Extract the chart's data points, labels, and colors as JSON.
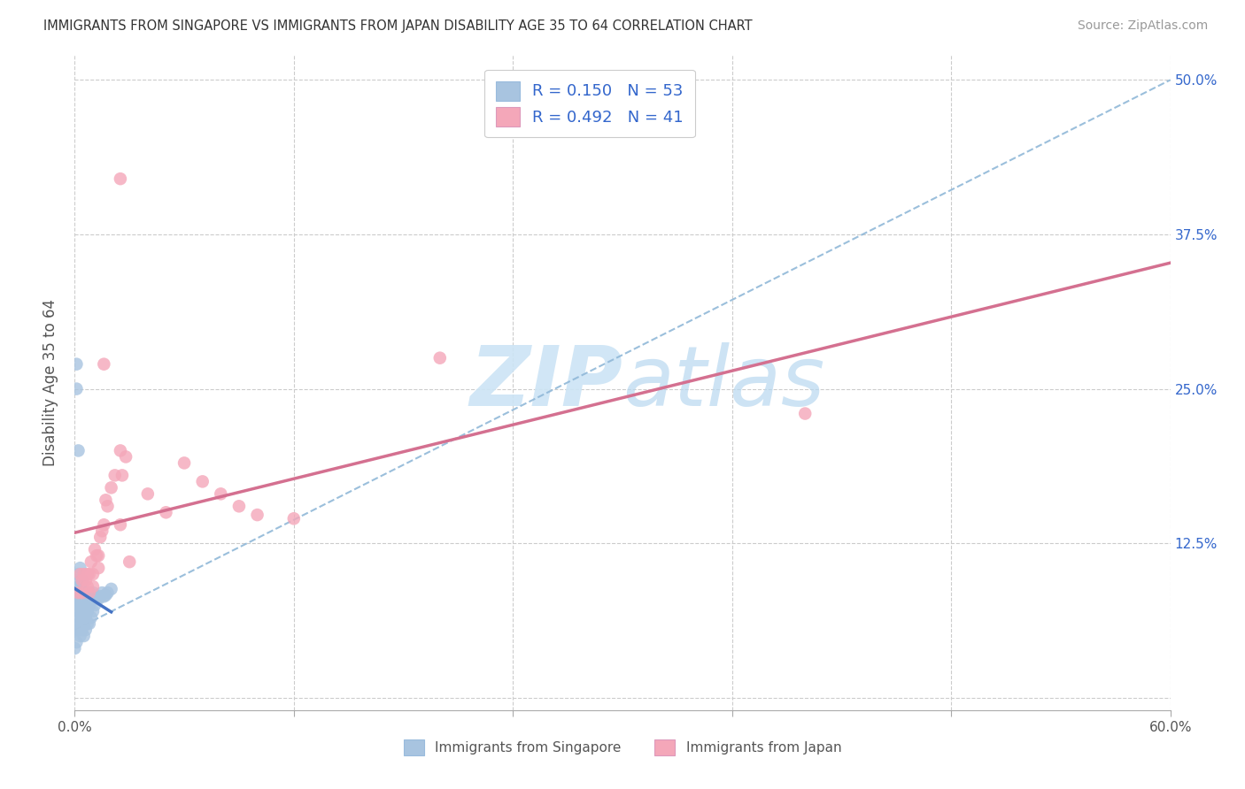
{
  "title": "IMMIGRANTS FROM SINGAPORE VS IMMIGRANTS FROM JAPAN DISABILITY AGE 35 TO 64 CORRELATION CHART",
  "source": "Source: ZipAtlas.com",
  "ylabel_label": "Disability Age 35 to 64",
  "x_min": 0.0,
  "x_max": 0.6,
  "y_min": -0.01,
  "y_max": 0.52,
  "r_singapore": 0.15,
  "n_singapore": 53,
  "r_japan": 0.492,
  "n_japan": 41,
  "color_singapore": "#a8c4e0",
  "color_japan": "#f4a7b9",
  "line_color_singapore": "#4472c4",
  "line_color_japan": "#d47090",
  "dash_line_color": "#90b8d8",
  "watermark_color": "#cce4f5",
  "legend_text_color": "#3366cc",
  "sg_x": [
    0.0,
    0.0,
    0.001,
    0.001,
    0.001,
    0.001,
    0.001,
    0.002,
    0.002,
    0.002,
    0.002,
    0.002,
    0.002,
    0.003,
    0.003,
    0.003,
    0.003,
    0.003,
    0.003,
    0.003,
    0.004,
    0.004,
    0.004,
    0.004,
    0.004,
    0.005,
    0.005,
    0.005,
    0.005,
    0.006,
    0.006,
    0.006,
    0.007,
    0.007,
    0.007,
    0.008,
    0.008,
    0.009,
    0.009,
    0.01,
    0.01,
    0.011,
    0.012,
    0.013,
    0.014,
    0.015,
    0.016,
    0.017,
    0.018,
    0.02,
    0.001,
    0.001,
    0.002
  ],
  "sg_y": [
    0.06,
    0.04,
    0.095,
    0.07,
    0.055,
    0.08,
    0.045,
    0.1,
    0.08,
    0.065,
    0.09,
    0.075,
    0.055,
    0.105,
    0.085,
    0.07,
    0.06,
    0.09,
    0.075,
    0.05,
    0.095,
    0.08,
    0.065,
    0.055,
    0.075,
    0.085,
    0.07,
    0.06,
    0.05,
    0.08,
    0.065,
    0.055,
    0.085,
    0.07,
    0.06,
    0.075,
    0.06,
    0.08,
    0.065,
    0.085,
    0.07,
    0.075,
    0.08,
    0.08,
    0.082,
    0.085,
    0.082,
    0.083,
    0.085,
    0.088,
    0.27,
    0.25,
    0.2
  ],
  "jp_x": [
    0.002,
    0.003,
    0.004,
    0.004,
    0.005,
    0.006,
    0.007,
    0.007,
    0.008,
    0.008,
    0.009,
    0.01,
    0.01,
    0.011,
    0.012,
    0.013,
    0.013,
    0.014,
    0.015,
    0.016,
    0.017,
    0.018,
    0.02,
    0.022,
    0.025,
    0.026,
    0.028,
    0.03,
    0.04,
    0.05,
    0.06,
    0.07,
    0.08,
    0.09,
    0.1,
    0.12,
    0.2,
    0.4,
    0.016,
    0.025,
    0.025
  ],
  "jp_y": [
    0.085,
    0.1,
    0.095,
    0.085,
    0.1,
    0.095,
    0.1,
    0.09,
    0.1,
    0.085,
    0.11,
    0.1,
    0.09,
    0.12,
    0.115,
    0.115,
    0.105,
    0.13,
    0.135,
    0.14,
    0.16,
    0.155,
    0.17,
    0.18,
    0.2,
    0.18,
    0.195,
    0.11,
    0.165,
    0.15,
    0.19,
    0.175,
    0.165,
    0.155,
    0.148,
    0.145,
    0.275,
    0.23,
    0.27,
    0.14,
    0.42
  ]
}
